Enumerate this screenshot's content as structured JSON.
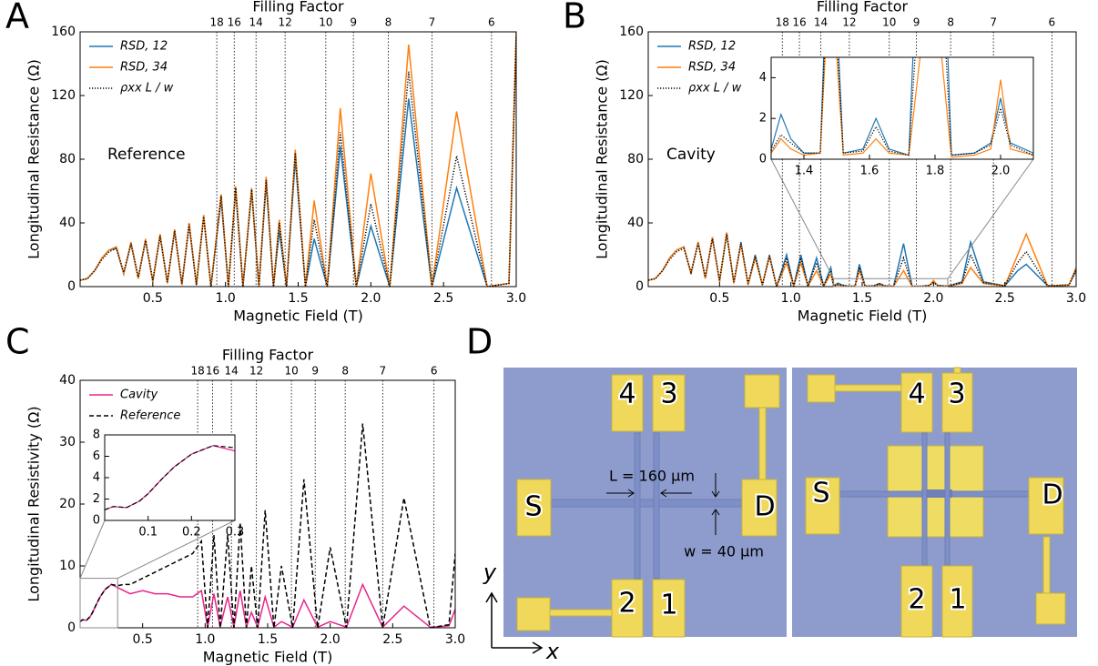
{
  "chart_data": [
    {
      "type": "line",
      "panel": "A",
      "xlabel": "Magnetic Field (T)",
      "ylabel": "Longitudinal Resistance (Ω)",
      "annotation": "Reference",
      "legend": "upper left",
      "xlim": [
        0,
        3
      ],
      "ylim": [
        0,
        160
      ],
      "xticks": [
        0.5,
        {
          "value": 1,
          "label": "1.0"
        },
        1.5,
        {
          "value": 2,
          "label": "2.0"
        },
        2.5,
        {
          "value": 3,
          "label": "3.0"
        }
      ],
      "yticks": [
        0,
        40,
        80,
        120,
        160
      ],
      "filling_factor": {
        "label": "Filling Factor",
        "ticks": [
          {
            "value": 0.94,
            "label": "18"
          },
          {
            "value": 1.06,
            "label": "16"
          },
          {
            "value": 1.21,
            "label": "14"
          },
          {
            "value": 1.41,
            "label": "12"
          },
          {
            "value": 1.69,
            "label": "10"
          },
          {
            "value": 1.88,
            "label": "9"
          },
          {
            "value": 2.12,
            "label": "8"
          },
          {
            "value": 2.42,
            "label": "7"
          },
          {
            "value": 2.83,
            "label": "6"
          }
        ]
      },
      "x": [
        0,
        0.05,
        0.1,
        0.15,
        0.2,
        0.25,
        0.3,
        0.35,
        0.4,
        0.45,
        0.5,
        0.55,
        0.6,
        0.65,
        0.7,
        0.75,
        0.8,
        0.85,
        0.9,
        0.97,
        1.02,
        1.07,
        1.12,
        1.18,
        1.23,
        1.28,
        1.33,
        1.37,
        1.42,
        1.48,
        1.55,
        1.61,
        1.7,
        1.79,
        1.9,
        2.0,
        2.13,
        2.26,
        2.42,
        2.59,
        2.8,
        2.95,
        3.0
      ],
      "series": [
        {
          "name": "RSD, 12",
          "color": "#1f77b4",
          "style": "solid",
          "values": [
            4,
            5,
            10,
            18,
            23,
            24,
            8,
            27,
            5,
            29,
            3,
            32,
            2,
            35,
            1,
            39,
            1,
            44,
            0,
            55,
            0,
            60,
            0,
            60,
            0,
            65,
            0,
            35,
            0,
            80,
            0,
            30,
            0,
            88,
            0,
            38,
            0,
            118,
            0,
            62,
            0,
            2,
            155
          ]
        },
        {
          "name": "RSD, 34",
          "color": "#ff7f0e",
          "style": "solid",
          "values": [
            4,
            5,
            10,
            18,
            23,
            25,
            8,
            28,
            5,
            30,
            3,
            33,
            2,
            36,
            1,
            40,
            1,
            45,
            0,
            58,
            0,
            63,
            0,
            62,
            0,
            69,
            0,
            42,
            0,
            86,
            0,
            54,
            0,
            112,
            0,
            71,
            0,
            152,
            0,
            110,
            0,
            2,
            160
          ]
        },
        {
          "name": "ρxx L / w",
          "color": "#000000",
          "style": "dotted",
          "values": [
            4,
            5,
            10,
            17,
            22,
            24,
            9,
            27,
            6,
            29,
            4,
            32,
            3,
            35,
            2,
            39,
            1,
            44,
            0,
            57,
            0,
            62,
            0,
            61,
            0,
            67,
            0,
            40,
            0,
            84,
            0,
            42,
            0,
            97,
            0,
            52,
            0,
            135,
            0,
            82,
            0,
            2,
            158
          ]
        }
      ]
    },
    {
      "type": "line",
      "panel": "B",
      "xlabel": "Magnetic Field (T)",
      "ylabel": "Longitudinal Resistance (Ω)",
      "annotation": "Cavity",
      "legend": "upper left",
      "xlim": [
        0,
        3
      ],
      "ylim": [
        0,
        160
      ],
      "xticks": [
        0.5,
        {
          "value": 1,
          "label": "1.0"
        },
        1.5,
        {
          "value": 2,
          "label": "2.0"
        },
        2.5,
        {
          "value": 3,
          "label": "3.0"
        }
      ],
      "yticks": [
        0,
        40,
        80,
        120,
        160
      ],
      "filling_factor": {
        "label": "Filling Factor",
        "ticks": [
          {
            "value": 0.94,
            "label": "18"
          },
          {
            "value": 1.06,
            "label": "16"
          },
          {
            "value": 1.21,
            "label": "14"
          },
          {
            "value": 1.41,
            "label": "12"
          },
          {
            "value": 1.69,
            "label": "10"
          },
          {
            "value": 1.88,
            "label": "9"
          },
          {
            "value": 2.12,
            "label": "8"
          },
          {
            "value": 2.42,
            "label": "7"
          },
          {
            "value": 2.83,
            "label": "6"
          }
        ]
      },
      "inset": {
        "xlim": [
          1.3,
          2.1
        ],
        "ylim": [
          0,
          5
        ],
        "xticks": [
          1.4,
          1.6,
          1.8,
          {
            "value": 2,
            "label": "2.0"
          }
        ],
        "yticks": [
          0,
          2,
          4
        ]
      },
      "x": [
        0,
        0.05,
        0.1,
        0.15,
        0.2,
        0.25,
        0.3,
        0.35,
        0.4,
        0.45,
        0.5,
        0.55,
        0.6,
        0.65,
        0.7,
        0.75,
        0.8,
        0.85,
        0.9,
        0.97,
        1.02,
        1.07,
        1.12,
        1.18,
        1.23,
        1.28,
        1.3,
        1.33,
        1.36,
        1.4,
        1.45,
        1.48,
        1.52,
        1.58,
        1.62,
        1.66,
        1.72,
        1.79,
        1.85,
        1.92,
        1.97,
        2.0,
        2.03,
        2.1,
        2.2,
        2.26,
        2.35,
        2.5,
        2.59,
        2.65,
        2.8,
        2.95,
        3.0
      ],
      "series": [
        {
          "name": "RSD, 12",
          "color": "#1f77b4",
          "style": "solid",
          "values": [
            4,
            5,
            10,
            18,
            23,
            25,
            8,
            28,
            5,
            31,
            3,
            33,
            2,
            28,
            1,
            20,
            1,
            20,
            0,
            20,
            0.3,
            20,
            0.3,
            18,
            0.3,
            12,
            0.5,
            2.2,
            1,
            0.3,
            0.3,
            14,
            0.3,
            0.5,
            2,
            0.5,
            0.2,
            27,
            0.2,
            0.3,
            0.8,
            3,
            0.8,
            0.3,
            3,
            28,
            3,
            0.5,
            10,
            14,
            0.5,
            1,
            10
          ]
        },
        {
          "name": "RSD, 34",
          "color": "#ff7f0e",
          "style": "solid",
          "values": [
            4,
            5,
            10,
            18,
            23,
            25,
            8,
            28,
            5,
            31,
            3,
            34,
            2,
            27,
            1,
            18,
            1,
            19,
            0,
            15,
            0.3,
            15,
            0.3,
            10,
            0.3,
            8,
            0.3,
            1,
            0.5,
            0.2,
            0.3,
            10,
            0.2,
            0.3,
            1,
            0.3,
            0.2,
            10,
            0.1,
            0.2,
            0.5,
            3.9,
            0.5,
            0.2,
            2,
            12,
            2,
            0.5,
            20,
            33,
            0.5,
            1,
            12
          ]
        },
        {
          "name": "ρxx L / w",
          "color": "#000000",
          "style": "dotted",
          "values": [
            4,
            5,
            10,
            17,
            22,
            24,
            9,
            27,
            6,
            30,
            4,
            33,
            3,
            27,
            2,
            19,
            1,
            19,
            0,
            18,
            0.3,
            18,
            0.3,
            15,
            0.3,
            10,
            0.4,
            1.2,
            0.8,
            0.3,
            0.3,
            12,
            0.3,
            0.4,
            1.6,
            0.4,
            0.2,
            18,
            0.2,
            0.3,
            0.7,
            2.5,
            0.7,
            0.2,
            2.5,
            20,
            2.5,
            0.5,
            15,
            22,
            0.5,
            1,
            11
          ]
        }
      ]
    },
    {
      "type": "line",
      "panel": "C",
      "xlabel": "Magnetic Field (T)",
      "ylabel": "Longitudinal Resistivity (Ω)",
      "legend": "upper left",
      "xlim": [
        0,
        3
      ],
      "ylim": [
        0,
        40
      ],
      "xticks": [
        0.5,
        {
          "value": 1,
          "label": "1.0"
        },
        1.5,
        {
          "value": 2,
          "label": "2.0"
        },
        2.5,
        {
          "value": 3,
          "label": "3.0"
        }
      ],
      "yticks": [
        0,
        10,
        20,
        30,
        40
      ],
      "filling_factor": {
        "label": "Filling Factor",
        "ticks": [
          {
            "value": 0.94,
            "label": "18"
          },
          {
            "value": 1.06,
            "label": "16"
          },
          {
            "value": 1.21,
            "label": "14"
          },
          {
            "value": 1.41,
            "label": "12"
          },
          {
            "value": 1.69,
            "label": "10"
          },
          {
            "value": 1.88,
            "label": "9"
          },
          {
            "value": 2.12,
            "label": "8"
          },
          {
            "value": 2.42,
            "label": "7"
          },
          {
            "value": 2.83,
            "label": "6"
          }
        ]
      },
      "inset": {
        "xlim": [
          0,
          0.3
        ],
        "ylim": [
          0,
          8
        ],
        "xticks": [
          0.1,
          0.2,
          0.3
        ],
        "yticks": [
          0,
          2,
          4,
          6,
          8
        ]
      },
      "x": [
        0,
        0.02,
        0.05,
        0.08,
        0.1,
        0.13,
        0.16,
        0.2,
        0.25,
        0.3,
        0.35,
        0.4,
        0.5,
        0.6,
        0.7,
        0.8,
        0.9,
        0.97,
        1.02,
        1.07,
        1.12,
        1.18,
        1.23,
        1.28,
        1.33,
        1.37,
        1.42,
        1.48,
        1.55,
        1.61,
        1.7,
        1.79,
        1.9,
        2.0,
        2.13,
        2.26,
        2.42,
        2.59,
        2.8,
        2.95,
        3.0
      ],
      "series": [
        {
          "name": "Cavity",
          "color": "#e8248c",
          "style": "solid",
          "values": [
            1,
            1.3,
            1.2,
            1.8,
            2.5,
            3.8,
            5,
            6.2,
            7,
            6.5,
            6,
            5.5,
            6,
            5.5,
            5.5,
            5,
            5,
            6,
            0.1,
            5.5,
            0.1,
            5,
            0.1,
            6,
            0.1,
            2.5,
            0.1,
            5,
            0.1,
            1,
            0.1,
            4.5,
            0.1,
            1,
            0.1,
            7,
            0.1,
            3.5,
            0.1,
            0.3,
            3
          ]
        },
        {
          "name": "Reference",
          "color": "#000000",
          "style": "dashed",
          "values": [
            1,
            1.3,
            1.2,
            1.8,
            2.5,
            3.8,
            5,
            6.2,
            7,
            6.8,
            7,
            7,
            8,
            9,
            10,
            11,
            12,
            14,
            0,
            15,
            0,
            15,
            0,
            17,
            0,
            10,
            0,
            19,
            0,
            10,
            0,
            24,
            0,
            13,
            0,
            33,
            0,
            21,
            0,
            0.5,
            12
          ]
        }
      ]
    }
  ],
  "photo": {
    "panel": "D",
    "left_pads": [
      "4",
      "3",
      "S",
      "D",
      "2",
      "1"
    ],
    "right_pads": [
      "4",
      "3",
      "S",
      "D",
      "2",
      "1"
    ],
    "length_label": "L = 160 μm",
    "width_label": "w = 40 μm",
    "axis_labels": [
      "y",
      "x"
    ]
  }
}
